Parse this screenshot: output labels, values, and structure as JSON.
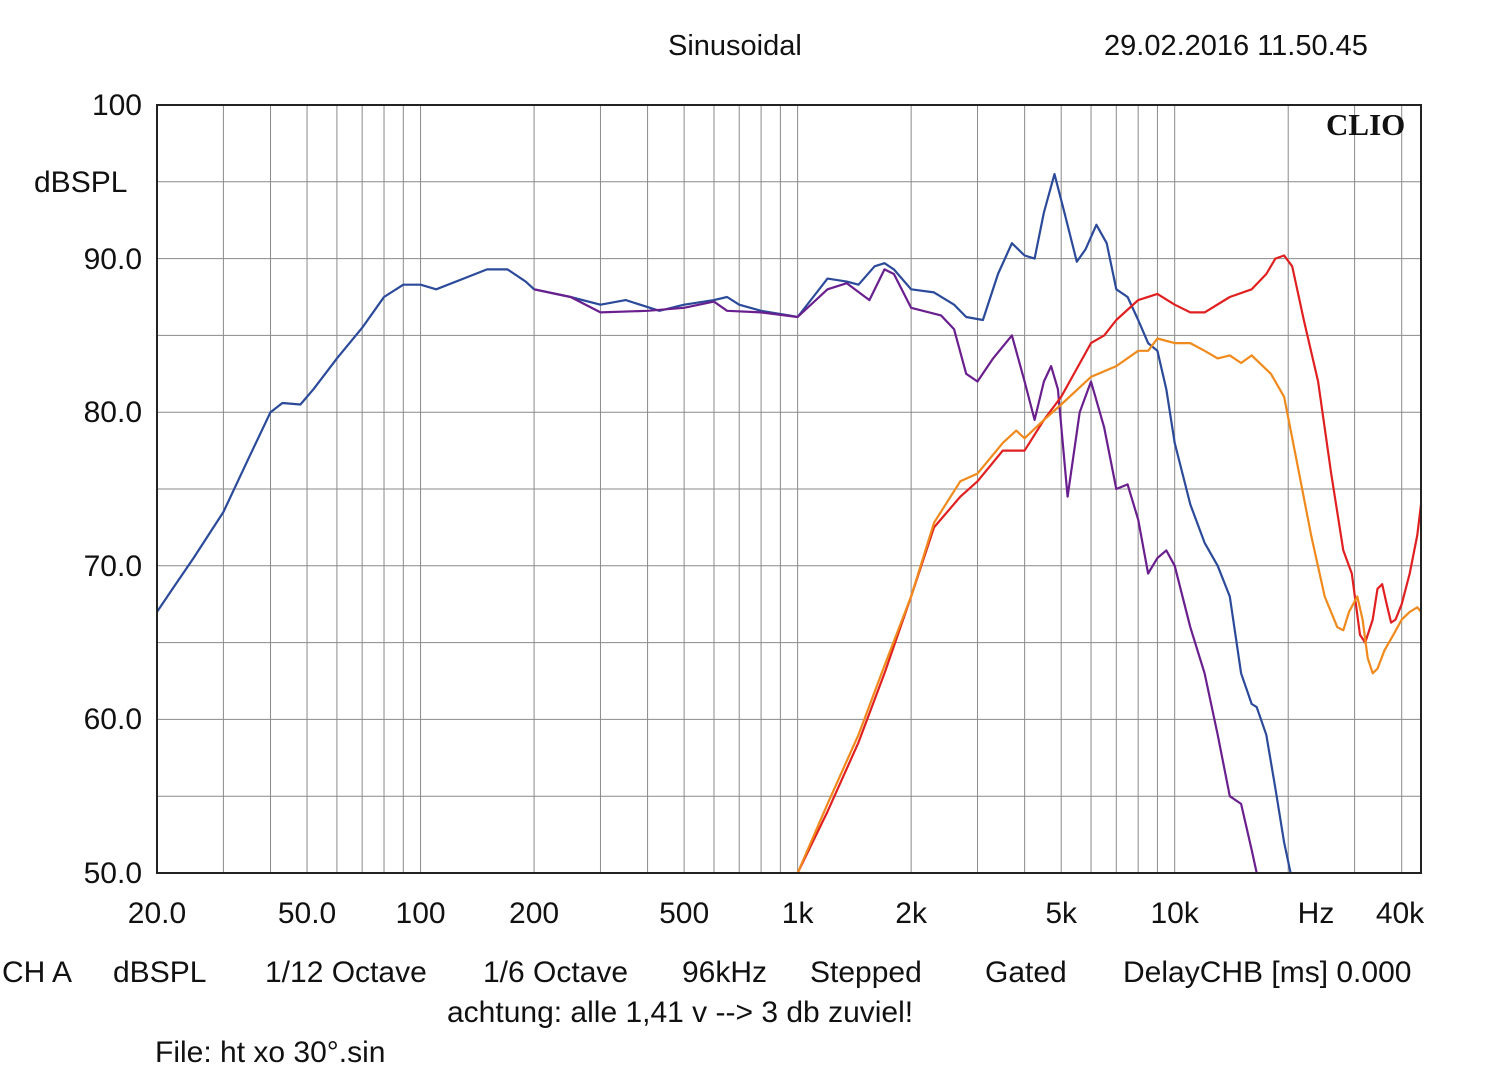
{
  "header": {
    "mode": "Sinusoidal",
    "timestamp": "29.02.2016 11.50.45"
  },
  "brand": "CLIO",
  "footer": {
    "settings": [
      "CH A",
      "dBSPL",
      "1/12 Octave",
      "1/6 Octave",
      "96kHz",
      "Stepped",
      "Gated",
      "DelayCHB [ms] 0.000"
    ],
    "note": "achtung: alle 1,41 v --> 3 db zuviel!",
    "file": "File: ht xo 30°.sin"
  },
  "chart_data": {
    "type": "line",
    "title": "",
    "xlabel": "Hz",
    "ylabel": "dBSPL",
    "x_scale": "log",
    "xlim": [
      20,
      45000
    ],
    "ylim": [
      50,
      100
    ],
    "grid": true,
    "y_ticks": [
      "100",
      "",
      "90.0",
      "",
      "80.0",
      "",
      "70.0",
      "",
      "60.0",
      "",
      "50.0"
    ],
    "y_tick_values": [
      100,
      95,
      90,
      85,
      80,
      75,
      70,
      65,
      60,
      55,
      50
    ],
    "x_ticks": [
      {
        "label": "20.0",
        "value": 20
      },
      {
        "label": "50.0",
        "value": 50
      },
      {
        "label": "100",
        "value": 100
      },
      {
        "label": "200",
        "value": 200
      },
      {
        "label": "500",
        "value": 500
      },
      {
        "label": "1k",
        "value": 1000
      },
      {
        "label": "2k",
        "value": 2000
      },
      {
        "label": "5k",
        "value": 5000
      },
      {
        "label": "10k",
        "value": 10000
      },
      {
        "label": "Hz",
        "value": 20000
      },
      {
        "label": "40k",
        "value": 40000
      }
    ],
    "series": [
      {
        "color": "#2b4a9a",
        "points": [
          [
            20,
            67
          ],
          [
            22,
            68.5
          ],
          [
            25,
            70.5
          ],
          [
            30,
            73.5
          ],
          [
            35,
            77
          ],
          [
            40,
            80
          ],
          [
            43,
            80.6
          ],
          [
            48,
            80.5
          ],
          [
            52,
            81.5
          ],
          [
            60,
            83.5
          ],
          [
            70,
            85.5
          ],
          [
            80,
            87.5
          ],
          [
            90,
            88.3
          ],
          [
            100,
            88.3
          ],
          [
            110,
            88
          ],
          [
            130,
            88.7
          ],
          [
            150,
            89.3
          ],
          [
            170,
            89.3
          ],
          [
            190,
            88.5
          ],
          [
            200,
            88
          ],
          [
            250,
            87.5
          ],
          [
            300,
            87
          ],
          [
            350,
            87.3
          ],
          [
            430,
            86.6
          ],
          [
            500,
            87
          ],
          [
            600,
            87.3
          ],
          [
            650,
            87.5
          ],
          [
            700,
            87
          ],
          [
            800,
            86.6
          ],
          [
            950,
            86.3
          ],
          [
            1000,
            86.2
          ],
          [
            1100,
            87.5
          ],
          [
            1200,
            88.7
          ],
          [
            1350,
            88.5
          ],
          [
            1450,
            88.3
          ],
          [
            1600,
            89.5
          ],
          [
            1700,
            89.7
          ],
          [
            1800,
            89.3
          ],
          [
            2000,
            88
          ],
          [
            2300,
            87.8
          ],
          [
            2600,
            87
          ],
          [
            2800,
            86.2
          ],
          [
            3100,
            86
          ],
          [
            3400,
            89
          ],
          [
            3700,
            91
          ],
          [
            4000,
            90.2
          ],
          [
            4250,
            90
          ],
          [
            4500,
            93
          ],
          [
            4800,
            95.5
          ],
          [
            5100,
            93
          ],
          [
            5500,
            89.8
          ],
          [
            5800,
            90.6
          ],
          [
            6200,
            92.2
          ],
          [
            6600,
            91
          ],
          [
            7000,
            88
          ],
          [
            7500,
            87.5
          ],
          [
            8000,
            86
          ],
          [
            8500,
            84.5
          ],
          [
            9000,
            84
          ],
          [
            9500,
            81.5
          ],
          [
            10000,
            78
          ],
          [
            11000,
            74
          ],
          [
            12000,
            71.5
          ],
          [
            13000,
            70
          ],
          [
            14000,
            68
          ],
          [
            15000,
            63
          ],
          [
            16000,
            61
          ],
          [
            16500,
            60.8
          ],
          [
            17500,
            59
          ],
          [
            18500,
            55.5
          ],
          [
            19500,
            52
          ],
          [
            20300,
            50
          ]
        ]
      },
      {
        "color": "#6a1f8e",
        "points": [
          [
            200,
            88
          ],
          [
            250,
            87.5
          ],
          [
            300,
            86.5
          ],
          [
            400,
            86.6
          ],
          [
            500,
            86.8
          ],
          [
            600,
            87.2
          ],
          [
            650,
            86.6
          ],
          [
            800,
            86.5
          ],
          [
            1000,
            86.2
          ],
          [
            1200,
            88
          ],
          [
            1350,
            88.4
          ],
          [
            1550,
            87.3
          ],
          [
            1700,
            89.3
          ],
          [
            1800,
            89
          ],
          [
            2000,
            86.8
          ],
          [
            2400,
            86.3
          ],
          [
            2600,
            85.4
          ],
          [
            2800,
            82.5
          ],
          [
            3000,
            82
          ],
          [
            3300,
            83.5
          ],
          [
            3700,
            85
          ],
          [
            4000,
            82
          ],
          [
            4250,
            79.5
          ],
          [
            4500,
            82
          ],
          [
            4700,
            83
          ],
          [
            4900,
            81.5
          ],
          [
            5200,
            74.5
          ],
          [
            5600,
            80
          ],
          [
            6000,
            82
          ],
          [
            6500,
            79
          ],
          [
            7000,
            75
          ],
          [
            7500,
            75.3
          ],
          [
            8000,
            73
          ],
          [
            8500,
            69.5
          ],
          [
            9000,
            70.5
          ],
          [
            9500,
            71
          ],
          [
            10000,
            70
          ],
          [
            11000,
            66
          ],
          [
            12000,
            63
          ],
          [
            13000,
            59
          ],
          [
            14000,
            55
          ],
          [
            15000,
            54.5
          ],
          [
            16000,
            51.5
          ],
          [
            16500,
            50
          ]
        ]
      },
      {
        "color": "#e02020",
        "points": [
          [
            1000,
            50
          ],
          [
            1200,
            54
          ],
          [
            1450,
            58.5
          ],
          [
            1700,
            63
          ],
          [
            2000,
            68
          ],
          [
            2300,
            72.5
          ],
          [
            2700,
            74.5
          ],
          [
            3000,
            75.5
          ],
          [
            3500,
            77.5
          ],
          [
            4000,
            77.5
          ],
          [
            4500,
            79.5
          ],
          [
            5000,
            81
          ],
          [
            6000,
            84.5
          ],
          [
            6500,
            85
          ],
          [
            7000,
            86
          ],
          [
            8000,
            87.3
          ],
          [
            9000,
            87.7
          ],
          [
            10000,
            87
          ],
          [
            11000,
            86.5
          ],
          [
            12000,
            86.5
          ],
          [
            14000,
            87.5
          ],
          [
            16000,
            88
          ],
          [
            17500,
            89
          ],
          [
            18500,
            90
          ],
          [
            19500,
            90.2
          ],
          [
            20500,
            89.5
          ],
          [
            22000,
            86
          ],
          [
            24000,
            82
          ],
          [
            26000,
            76
          ],
          [
            28000,
            71
          ],
          [
            29500,
            69.5
          ],
          [
            31000,
            65.5
          ],
          [
            32000,
            65
          ],
          [
            33500,
            66.5
          ],
          [
            34500,
            68.5
          ],
          [
            35500,
            68.8
          ],
          [
            36500,
            67.5
          ],
          [
            37500,
            66.3
          ],
          [
            38500,
            66.5
          ],
          [
            40000,
            67.5
          ],
          [
            42000,
            69.5
          ],
          [
            44000,
            72
          ],
          [
            45000,
            74
          ]
        ]
      },
      {
        "color": "#f08a1c",
        "points": [
          [
            1000,
            50
          ],
          [
            1200,
            54.5
          ],
          [
            1450,
            59
          ],
          [
            1700,
            63.5
          ],
          [
            2000,
            68
          ],
          [
            2300,
            72.8
          ],
          [
            2700,
            75.5
          ],
          [
            3000,
            76
          ],
          [
            3500,
            78
          ],
          [
            3800,
            78.8
          ],
          [
            4000,
            78.3
          ],
          [
            4500,
            79.5
          ],
          [
            5000,
            80.5
          ],
          [
            6000,
            82.3
          ],
          [
            7000,
            83
          ],
          [
            8000,
            84
          ],
          [
            8500,
            84
          ],
          [
            9000,
            84.8
          ],
          [
            10000,
            84.5
          ],
          [
            11000,
            84.5
          ],
          [
            12000,
            84
          ],
          [
            13000,
            83.5
          ],
          [
            14000,
            83.7
          ],
          [
            15000,
            83.2
          ],
          [
            16000,
            83.7
          ],
          [
            18000,
            82.5
          ],
          [
            19500,
            81
          ],
          [
            21000,
            77
          ],
          [
            23000,
            72
          ],
          [
            25000,
            68
          ],
          [
            27000,
            66
          ],
          [
            28000,
            65.8
          ],
          [
            29000,
            67
          ],
          [
            30500,
            68
          ],
          [
            31500,
            66.5
          ],
          [
            32500,
            64
          ],
          [
            33500,
            63
          ],
          [
            34500,
            63.3
          ],
          [
            36000,
            64.5
          ],
          [
            38000,
            65.5
          ],
          [
            40000,
            66.5
          ],
          [
            42000,
            67
          ],
          [
            44000,
            67.3
          ],
          [
            45000,
            67
          ]
        ]
      }
    ]
  }
}
